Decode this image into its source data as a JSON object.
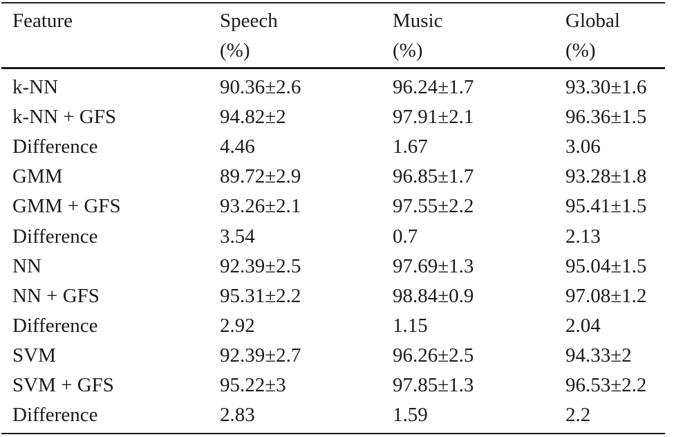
{
  "table": {
    "header": [
      [
        "Feature"
      ],
      [
        "Speech",
        "(%)"
      ],
      [
        "Music",
        "(%)"
      ],
      [
        "Global",
        "(%)"
      ]
    ],
    "rows": [
      [
        "k-NN",
        "90.36±2.6",
        "96.24±1.7",
        "93.30±1.6"
      ],
      [
        "k-NN + GFS",
        "94.82±2",
        "97.91±2.1",
        "96.36±1.5"
      ],
      [
        "Difference",
        "4.46",
        "1.67",
        "3.06"
      ],
      [
        "GMM",
        "89.72±2.9",
        "96.85±1.7",
        "93.28±1.8"
      ],
      [
        "GMM + GFS",
        "93.26±2.1",
        "97.55±2.2",
        "95.41±1.5"
      ],
      [
        "Difference",
        "3.54",
        "0.7",
        "2.13"
      ],
      [
        "NN",
        "92.39±2.5",
        "97.69±1.3",
        "95.04±1.5"
      ],
      [
        "NN + GFS",
        "95.31±2.2",
        "98.84±0.9",
        "97.08±1.2"
      ],
      [
        "Difference",
        "2.92",
        "1.15",
        "2.04"
      ],
      [
        "SVM",
        "92.39±2.7",
        "96.26±2.5",
        "94.33±2"
      ],
      [
        "SVM + GFS",
        "95.22±3",
        "97.85±1.3",
        "96.53±2.2"
      ],
      [
        "Difference",
        "2.83",
        "1.59",
        "2.2"
      ]
    ]
  }
}
